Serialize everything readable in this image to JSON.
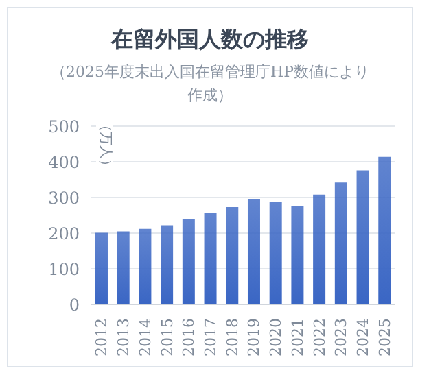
{
  "chart_data": {
    "type": "bar",
    "title": "在留外国人数の推移",
    "subtitle": "（2025年度末出入国在留管理庁HP数値により作成）",
    "ylabel": "（万人）",
    "categories": [
      "2012",
      "2013",
      "2014",
      "2015",
      "2016",
      "2017",
      "2018",
      "2019",
      "2020",
      "2021",
      "2022",
      "2023",
      "2024",
      "2025"
    ],
    "values": [
      201,
      205,
      212,
      222,
      239,
      256,
      273,
      294,
      287,
      277,
      308,
      342,
      376,
      414
    ],
    "color": "#3a66c4",
    "ylim": [
      0,
      500
    ],
    "yticks": [
      0,
      100,
      200,
      300,
      400,
      500
    ],
    "grid": "y",
    "legend": false
  }
}
